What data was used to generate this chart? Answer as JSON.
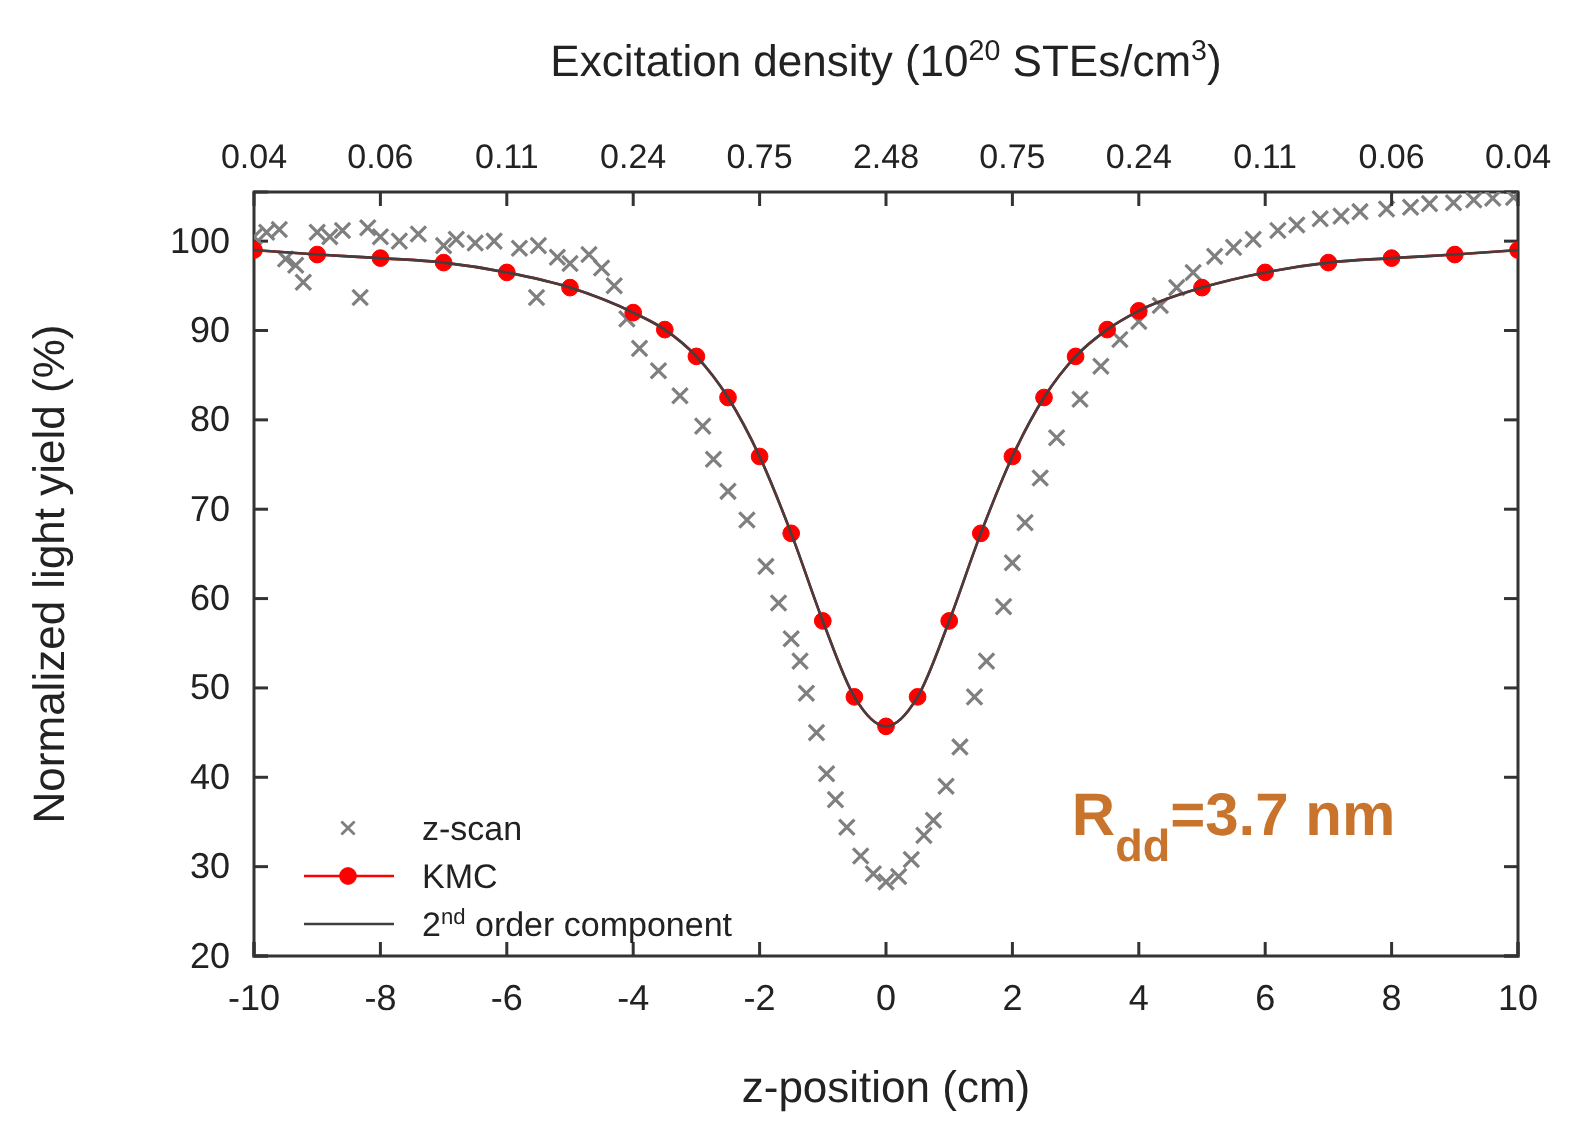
{
  "chart_data": {
    "type": "line",
    "xlabel": "z-position (cm)",
    "ylabel": "Normalized light yield (%)",
    "x2label": "Excitation density (10$^{20}$ STEs/cm$^{3}$)",
    "xlim": [
      -10,
      10
    ],
    "xticks": [
      -10,
      -8,
      -6,
      -4,
      -2,
      0,
      2,
      4,
      6,
      8,
      10
    ],
    "ylim": [
      20,
      105.5
    ],
    "yticks": [
      20,
      30,
      40,
      50,
      60,
      70,
      80,
      90,
      100
    ],
    "legend": "bottom left",
    "grid": false,
    "series": [
      {
        "name": "z-scan",
        "type": "scatter",
        "marker": "cross",
        "color": "#7f7f7f",
        "x": [
          -10,
          -9.8,
          -9.6,
          -9.5,
          -9.34,
          -9.22,
          -9,
          -8.8,
          -8.6,
          -8.32,
          -8.2,
          -8,
          -7.7,
          -7.4,
          -7,
          -6.8,
          -6.5,
          -6.2,
          -5.8,
          -5.53,
          -5.5,
          -5.2,
          -5,
          -4.7,
          -4.5,
          -4.3,
          -4.1,
          -3.9,
          -3.6,
          -3.26,
          -2.9,
          -2.73,
          -2.5,
          -2.2,
          -1.9,
          -1.7,
          -1.5,
          -1.36,
          -1.26,
          -1.1,
          -0.94,
          -0.8,
          -0.62,
          -0.4,
          -0.2,
          0,
          0.2,
          0.4,
          0.6,
          0.75,
          0.95,
          1.17,
          1.4,
          1.59,
          1.86,
          2,
          2.2,
          2.44,
          2.7,
          3.07,
          3.4,
          3.7,
          4,
          4.34,
          4.6,
          4.86,
          5.2,
          5.5,
          5.81,
          6.2,
          6.5,
          6.87,
          7.2,
          7.5,
          7.92,
          8.3,
          8.6,
          8.98,
          9.3,
          9.6,
          9.93
        ],
        "values": [
          100.5,
          101,
          101.3,
          98,
          97.3,
          95.4,
          101,
          100.5,
          101.2,
          93.7,
          101.5,
          100.5,
          100,
          100.8,
          99.5,
          100.2,
          99.8,
          100,
          99.2,
          93.7,
          99.5,
          98.2,
          97.5,
          98.5,
          97,
          95,
          91.3,
          88,
          85.5,
          82.7,
          79.3,
          75.6,
          72,
          68.8,
          63.6,
          59.5,
          55.5,
          53,
          49.4,
          45,
          40.4,
          37.5,
          34.4,
          31.2,
          29.2,
          28.3,
          28.9,
          30.8,
          33.5,
          35.2,
          39,
          43.4,
          49,
          53,
          59.1,
          64,
          68.5,
          73.5,
          78,
          82.3,
          86,
          89,
          91,
          92.8,
          94.8,
          96.5,
          98.3,
          99.3,
          100.2,
          101.2,
          101.8,
          102.5,
          102.8,
          103.3,
          103.6,
          103.8,
          104.2,
          104.3,
          104.6,
          104.8,
          104.9
        ]
      },
      {
        "name": "KMC",
        "marker": "circle",
        "color": "#ff0000",
        "x": [
          -10,
          -9,
          -8,
          -7,
          -6,
          -5,
          -4,
          -3.5,
          -3,
          -2.5,
          -2,
          -1.5,
          -1,
          -0.5,
          0,
          0.5,
          1,
          1.5,
          2,
          2.5,
          3,
          3.5,
          4,
          5,
          6,
          7,
          8,
          9,
          10
        ],
        "values": [
          99,
          98.5,
          98.1,
          97.6,
          96.5,
          94.8,
          92,
          90.1,
          87.1,
          82.5,
          75.9,
          67.3,
          57.5,
          49,
          45.7,
          49,
          57.5,
          67.3,
          75.9,
          82.5,
          87.1,
          90.1,
          92.2,
          94.8,
          96.5,
          97.6,
          98.1,
          98.5,
          99
        ]
      },
      {
        "name": "2$^{nd}$ order component",
        "type": "line",
        "marker": "none",
        "color": "#404040",
        "x": [
          -10,
          -9,
          -8,
          -7,
          -6,
          -5,
          -4,
          -3.5,
          -3,
          -2.5,
          -2,
          -1.5,
          -1,
          -0.5,
          0,
          0.5,
          1,
          1.5,
          2,
          2.5,
          3,
          3.5,
          4,
          5,
          6,
          7,
          8,
          9,
          10
        ],
        "values": [
          99,
          98.5,
          98.1,
          97.6,
          96.5,
          94.8,
          92,
          90.1,
          87.1,
          82.5,
          75.9,
          67.3,
          57.5,
          49,
          45.7,
          49,
          57.5,
          67.3,
          75.9,
          82.5,
          87.1,
          90.1,
          92.2,
          94.8,
          96.5,
          97.6,
          98.1,
          98.5,
          99
        ]
      }
    ],
    "annotations": [
      "R$_{dd}$=3.7 nm",
      "0.04",
      "0.06",
      "0.11",
      "0.24",
      "0.75",
      "2.48",
      "0.75",
      "0.24",
      "0.11",
      "0.06",
      "0.04"
    ]
  }
}
